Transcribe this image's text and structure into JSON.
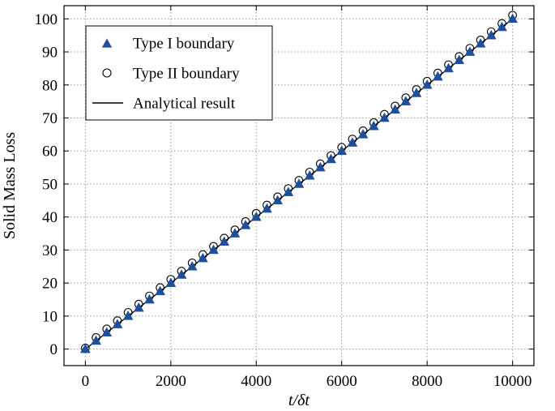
{
  "chart_data": {
    "type": "scatter",
    "title": "",
    "xlabel": "t/δt",
    "ylabel": "Solid Mass Loss",
    "xlim": [
      -500,
      10500
    ],
    "ylim": [
      -5,
      104
    ],
    "xticks": [
      0,
      2000,
      4000,
      6000,
      8000,
      10000
    ],
    "yticks": [
      0,
      10,
      20,
      30,
      40,
      50,
      60,
      70,
      80,
      90,
      100
    ],
    "grid": true,
    "legend_position": "top-left",
    "series": [
      {
        "name": "Type I boundary",
        "kind": "markers",
        "marker": "triangle",
        "color": "#1f4e9a",
        "x": [
          0,
          250,
          500,
          750,
          1000,
          1250,
          1500,
          1750,
          2000,
          2250,
          2500,
          2750,
          3000,
          3250,
          3500,
          3750,
          4000,
          4250,
          4500,
          4750,
          5000,
          5250,
          5500,
          5750,
          6000,
          6250,
          6500,
          6750,
          7000,
          7250,
          7500,
          7750,
          8000,
          8250,
          8500,
          8750,
          9000,
          9250,
          9500,
          9750,
          10000
        ],
        "y": [
          0,
          2.5,
          5,
          7.5,
          10,
          12.5,
          15,
          17.5,
          20,
          22.5,
          25,
          27.5,
          30,
          32.5,
          35,
          37.5,
          40,
          42.5,
          45,
          47.5,
          50,
          52.5,
          55,
          57.5,
          60,
          62.5,
          65,
          67.5,
          70,
          72.5,
          75,
          77.5,
          80,
          82.5,
          85,
          87.5,
          90,
          92.5,
          95,
          97.5,
          100
        ]
      },
      {
        "name": "Type II boundary",
        "kind": "markers",
        "marker": "circle",
        "color": "#000000",
        "x": [
          0,
          250,
          500,
          750,
          1000,
          1250,
          1500,
          1750,
          2000,
          2250,
          2500,
          2750,
          3000,
          3250,
          3500,
          3750,
          4000,
          4250,
          4500,
          4750,
          5000,
          5250,
          5500,
          5750,
          6000,
          6250,
          6500,
          6750,
          7000,
          7250,
          7500,
          7750,
          8000,
          8250,
          8500,
          8750,
          9000,
          9250,
          9500,
          9750,
          10000
        ],
        "y": [
          0.3,
          3.5,
          6.1,
          8.6,
          11.1,
          13.6,
          16.1,
          18.6,
          21.1,
          23.6,
          26.1,
          28.6,
          31.1,
          33.6,
          36.1,
          38.6,
          41.1,
          43.6,
          46.1,
          48.6,
          51.1,
          53.6,
          56.1,
          58.6,
          61.1,
          63.6,
          66.1,
          68.6,
          71.1,
          73.6,
          76.1,
          78.6,
          81.1,
          83.6,
          86.1,
          88.6,
          91.1,
          93.6,
          96.1,
          98.6,
          101.1
        ]
      },
      {
        "name": "Analytical result",
        "kind": "line",
        "color": "#000000",
        "x": [
          0,
          10000
        ],
        "y": [
          0,
          100
        ]
      }
    ]
  }
}
